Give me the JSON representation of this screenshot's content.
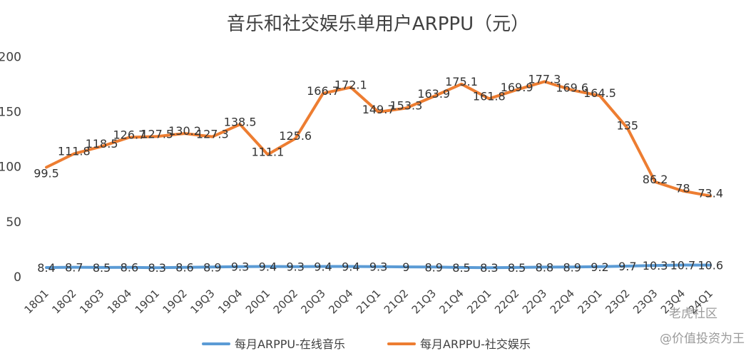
{
  "chart_data": {
    "type": "line",
    "title": "音乐和社交娱乐单用户ARPPU（元）",
    "xlabel": "",
    "ylabel": "",
    "ylim": [
      0,
      200
    ],
    "yticks": [
      0,
      50,
      100,
      150,
      200
    ],
    "grid": false,
    "legend_position": "bottom",
    "categories": [
      "18Q1",
      "18Q2",
      "18Q3",
      "18Q4",
      "19Q1",
      "19Q2",
      "19Q3",
      "19Q4",
      "20Q1",
      "20Q2",
      "20Q3",
      "20Q4",
      "21Q1",
      "21Q2",
      "21Q3",
      "21Q4",
      "22Q1",
      "22Q2",
      "22Q3",
      "22Q4",
      "23Q1",
      "23Q2",
      "23Q3",
      "23Q4",
      "24Q1"
    ],
    "series": [
      {
        "name": "每月ARPPU-在线音乐",
        "color": "#5B9BD5",
        "values": [
          8.4,
          8.7,
          8.5,
          8.6,
          8.3,
          8.6,
          8.9,
          9.3,
          9.4,
          9.3,
          9.4,
          9.4,
          9.3,
          9,
          8.9,
          8.5,
          8.3,
          8.5,
          8.8,
          8.9,
          9.2,
          9.7,
          10.3,
          10.7,
          10.6
        ],
        "labels": [
          "8.4",
          "8.7",
          "8.5",
          "8.6",
          "8.3",
          "8.6",
          "8.9",
          "9.3",
          "9.4",
          "9.3",
          "9.4",
          "9.4",
          "9.3",
          "9",
          "8.9",
          "8.5",
          "8.3",
          "8.5",
          "8.8",
          "8.9",
          "9.2",
          "9.7",
          "10.3",
          "10.7",
          "10.6"
        ]
      },
      {
        "name": "每月ARPPU-社交娱乐",
        "color": "#ED7D31",
        "values": [
          99.5,
          111.8,
          118.5,
          126.7,
          127.5,
          130.2,
          127.3,
          138.5,
          111.1,
          125.6,
          166.7,
          172.1,
          149.7,
          153.3,
          163.9,
          175.1,
          161.8,
          169.9,
          177.3,
          169.6,
          164.5,
          135,
          86.2,
          78,
          73.4
        ],
        "labels": [
          "99.5",
          "111.8",
          "118.5",
          "126.7",
          "127.5",
          "130.2",
          "127.3",
          "138.5",
          "111.1",
          "125.6",
          "166.7",
          "172.1",
          "149.7",
          "153.3",
          "163.9",
          "175.1",
          "161.8",
          "169.9",
          "177.3",
          "169.6",
          "164.5",
          "135",
          "86.2",
          "78",
          "73.4"
        ]
      }
    ]
  },
  "watermark": {
    "line1": "老虎社区",
    "line2": "@价值投资为王"
  }
}
